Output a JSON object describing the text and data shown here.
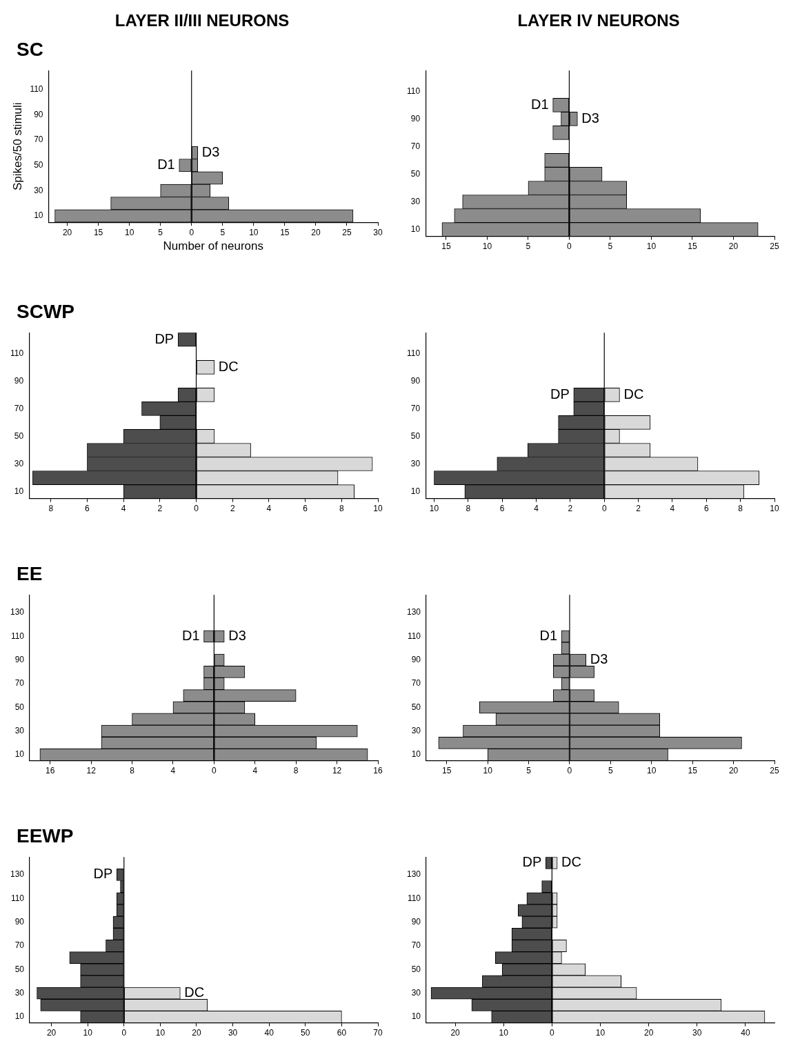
{
  "chart_data": [
    {
      "type": "bar",
      "orientation": "horizontal",
      "stacked": true,
      "title": "LAYER II/III NEURONS",
      "subtitle": "SC",
      "ylabel": "Spikes/50 stimuli",
      "xlabel": "Number of neurons",
      "categories": [
        null,
        "110",
        null,
        "90",
        null,
        "70",
        null,
        "50",
        null,
        "30",
        null,
        "10"
      ],
      "series": [
        {
          "name": "D1",
          "color": "#8c8c8c",
          "values": [
            0,
            0,
            0,
            0,
            0,
            0,
            0,
            -2,
            0,
            -5,
            -13,
            -22
          ]
        },
        {
          "name": "D3",
          "color": "#8c8c8c",
          "values": [
            0,
            0,
            0,
            0,
            0,
            0,
            1,
            1,
            5,
            3,
            6,
            26
          ]
        }
      ],
      "xlim": [
        -23,
        30
      ],
      "xticks": [
        {
          "value": -20,
          "label": "20"
        },
        {
          "value": -15,
          "label": "15"
        },
        {
          "value": -10,
          "label": "10"
        },
        {
          "value": -5,
          "label": "5"
        },
        0,
        5,
        10,
        15,
        20,
        25,
        30
      ],
      "ref_lines": [
        {
          "axis": "x",
          "value": 0
        }
      ],
      "grid": false,
      "legend": false
    },
    {
      "type": "bar",
      "orientation": "horizontal",
      "stacked": true,
      "title": "LAYER IV NEURONS",
      "categories": [
        null,
        "110",
        null,
        "90",
        null,
        "70",
        null,
        "50",
        null,
        "30",
        null,
        "10"
      ],
      "series": [
        {
          "name": "D1",
          "color": "#8c8c8c",
          "values": [
            0,
            0,
            -2,
            -1,
            -2,
            0,
            -3,
            -3,
            -5,
            -13,
            -14,
            -15.5
          ]
        },
        {
          "name": "D3",
          "color": "#8c8c8c",
          "values": [
            0,
            0,
            0,
            1,
            0,
            0,
            0,
            4,
            7,
            7,
            16,
            23
          ]
        }
      ],
      "xlim": [
        -17.5,
        25
      ],
      "xticks": [
        {
          "value": -15,
          "label": "15"
        },
        {
          "value": -10,
          "label": "10"
        },
        {
          "value": -5,
          "label": "5"
        },
        0,
        5,
        10,
        15,
        20,
        25
      ],
      "ref_lines": [
        {
          "axis": "x",
          "value": 0
        }
      ],
      "grid": false,
      "legend": false
    },
    {
      "type": "bar",
      "orientation": "horizontal",
      "stacked": true,
      "subtitle": "SCWP",
      "categories": [
        null,
        "110",
        null,
        "90",
        null,
        "70",
        null,
        "50",
        null,
        "30",
        null,
        "10"
      ],
      "series": [
        {
          "name": "DP",
          "color": "#4d4d4d",
          "values": [
            -1,
            0,
            0,
            0,
            -1,
            -3,
            -2,
            -4,
            -6,
            -6,
            -9,
            -4
          ]
        },
        {
          "name": "DC",
          "color": "#d9d9d9",
          "values": [
            0,
            0,
            1,
            0,
            1,
            0,
            0,
            1,
            3,
            9.7,
            7.8,
            8.7
          ]
        }
      ],
      "xlim": [
        -9.2,
        10
      ],
      "xticks": [
        {
          "value": -8,
          "label": "8"
        },
        {
          "value": -6,
          "label": "6"
        },
        {
          "value": -4,
          "label": "4"
        },
        {
          "value": -2,
          "label": "2"
        },
        0,
        2,
        4,
        6,
        8,
        10
      ],
      "ref_lines": [
        {
          "axis": "x",
          "value": 0
        }
      ],
      "grid": false,
      "legend": false
    },
    {
      "type": "bar",
      "orientation": "horizontal",
      "stacked": true,
      "categories": [
        null,
        "110",
        null,
        "90",
        null,
        "70",
        null,
        "50",
        null,
        "30",
        null,
        "10"
      ],
      "series": [
        {
          "name": "DP",
          "color": "#4d4d4d",
          "values": [
            0,
            0,
            0,
            0,
            -1.8,
            -1.8,
            -2.7,
            -2.7,
            -4.5,
            -6.3,
            -10,
            -8.2
          ]
        },
        {
          "name": "DC",
          "color": "#d9d9d9",
          "values": [
            0,
            0,
            0,
            0,
            0.9,
            0,
            2.7,
            0.9,
            2.7,
            5.5,
            9.1,
            8.2
          ]
        }
      ],
      "xlim": [
        -10.5,
        10
      ],
      "xticks": [
        {
          "value": -10,
          "label": "10"
        },
        {
          "value": -8,
          "label": "8"
        },
        {
          "value": -6,
          "label": "6"
        },
        {
          "value": -4,
          "label": "4"
        },
        {
          "value": -2,
          "label": "2"
        },
        0,
        2,
        4,
        6,
        8,
        10
      ],
      "ref_lines": [
        {
          "axis": "x",
          "value": 0
        }
      ],
      "grid": false,
      "legend": false
    },
    {
      "type": "bar",
      "orientation": "horizontal",
      "stacked": true,
      "subtitle": "EE",
      "categories": [
        null,
        "130",
        null,
        "110",
        null,
        "90",
        null,
        "70",
        null,
        "50",
        null,
        "30",
        null,
        "10"
      ],
      "series": [
        {
          "name": "D1",
          "color": "#8c8c8c",
          "values": [
            0,
            0,
            0,
            -1,
            0,
            0,
            -1,
            -1,
            -3,
            -4,
            -8,
            -11,
            -11,
            -17
          ]
        },
        {
          "name": "D3",
          "color": "#8c8c8c",
          "values": [
            0,
            0,
            0,
            1,
            0,
            1,
            3,
            1,
            8,
            3,
            4,
            14,
            10,
            15
          ]
        }
      ],
      "xlim": [
        -18,
        16
      ],
      "xticks": [
        {
          "value": -16,
          "label": "16"
        },
        {
          "value": -12,
          "label": "12"
        },
        {
          "value": -8,
          "label": "8"
        },
        {
          "value": -4,
          "label": "4"
        },
        0,
        4,
        8,
        12,
        16
      ],
      "ref_lines": [
        {
          "axis": "x",
          "value": 0
        }
      ],
      "grid": false,
      "legend": false
    },
    {
      "type": "bar",
      "orientation": "horizontal",
      "stacked": true,
      "categories": [
        null,
        "130",
        null,
        "110",
        null,
        "90",
        null,
        "70",
        null,
        "50",
        null,
        "30",
        null,
        "10"
      ],
      "series": [
        {
          "name": "D1",
          "color": "#8c8c8c",
          "values": [
            0,
            0,
            0,
            -1,
            -1,
            -2,
            -2,
            -1,
            -2,
            -11,
            -9,
            -13,
            -16,
            -10
          ]
        },
        {
          "name": "D3",
          "color": "#8c8c8c",
          "values": [
            0,
            0,
            0,
            0,
            0,
            2,
            3,
            0,
            3,
            6,
            11,
            11,
            21,
            12
          ]
        }
      ],
      "xlim": [
        -17.5,
        25
      ],
      "xticks": [
        {
          "value": -15,
          "label": "15"
        },
        {
          "value": -10,
          "label": "10"
        },
        {
          "value": -5,
          "label": "5"
        },
        0,
        5,
        10,
        15,
        20,
        25
      ],
      "ref_lines": [
        {
          "axis": "x",
          "value": 0
        }
      ],
      "grid": false,
      "legend": false
    },
    {
      "type": "bar",
      "orientation": "horizontal",
      "stacked": true,
      "subtitle": "EEWP",
      "categories": [
        null,
        "130",
        null,
        "110",
        null,
        "90",
        null,
        "70",
        null,
        "50",
        null,
        "30",
        null,
        "10"
      ],
      "series": [
        {
          "name": "DP",
          "color": "#4d4d4d",
          "values": [
            0,
            -2,
            -1,
            -2,
            -2,
            -3,
            -3,
            -5,
            -15,
            -12,
            -12,
            -24,
            -23,
            -12
          ]
        },
        {
          "name": "DC",
          "color": "#d9d9d9",
          "values": [
            0,
            0,
            0,
            0,
            0,
            0,
            0,
            0,
            0,
            0,
            0,
            15.5,
            23,
            60
          ]
        }
      ],
      "xlim": [
        -26,
        70
      ],
      "xticks": [
        {
          "value": -20,
          "label": "20"
        },
        {
          "value": -10,
          "label": "10"
        },
        0,
        10,
        20,
        30,
        40,
        50,
        60,
        70
      ],
      "ref_lines": [
        {
          "axis": "x",
          "value": 0
        }
      ],
      "grid": false,
      "legend": false
    },
    {
      "type": "bar",
      "orientation": "horizontal",
      "stacked": true,
      "categories": [
        null,
        "130",
        null,
        "110",
        null,
        "90",
        null,
        "70",
        null,
        "50",
        null,
        "30",
        null,
        "10"
      ],
      "series": [
        {
          "name": "DP",
          "color": "#4d4d4d",
          "values": [
            -1.3,
            0,
            -2.1,
            -5.2,
            -7,
            -6.2,
            -8.3,
            -8.3,
            -11.7,
            -10.3,
            -14.4,
            -25,
            -16.6,
            -12.5
          ]
        },
        {
          "name": "DC",
          "color": "#d9d9d9",
          "values": [
            1.1,
            0,
            0,
            1.1,
            1.1,
            1.1,
            0,
            3,
            2,
            6.9,
            14.3,
            17.5,
            35,
            44
          ]
        }
      ],
      "xlim": [
        -26,
        46
      ],
      "xticks": [
        {
          "value": -20,
          "label": "20"
        },
        {
          "value": -10,
          "label": "10"
        },
        0,
        10,
        20,
        30,
        40
      ],
      "ref_lines": [
        {
          "axis": "x",
          "value": 0
        }
      ],
      "grid": false,
      "legend": false
    }
  ]
}
